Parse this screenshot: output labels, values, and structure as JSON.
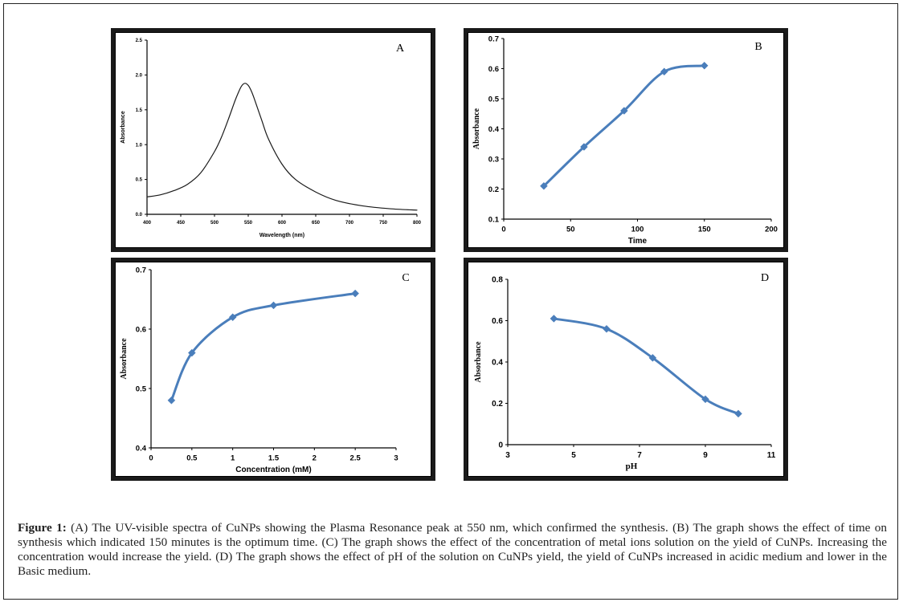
{
  "figure": {
    "caption_label": "Figure 1:",
    "caption_text": "(A) The UV-visible spectra of CuNPs showing the Plasma Resonance peak at 550 nm, which confirmed the synthesis. (B) The graph shows the effect of time on synthesis which indicated 150 minutes is the optimum time. (C) The graph shows the effect of the concentration of metal ions solution on the yield of CuNPs. Increasing the concentration would increase the yield. (D) The graph shows the effect of pH of the solution on CuNPs yield, the yield of CuNPs increased in acidic medium and lower in the Basic medium."
  },
  "colors": {
    "series": "#4a7ebb",
    "axis": "#000000",
    "curveA": "#1a1a1a"
  },
  "chart_data": [
    {
      "id": "A",
      "type": "line",
      "panel_label": "A",
      "title": "",
      "xlabel": "Wavelength (nm)",
      "ylabel": "Absorbance",
      "xlim": [
        400,
        800
      ],
      "ylim": [
        0,
        2.5
      ],
      "xticks": [
        400,
        450,
        500,
        550,
        600,
        650,
        700,
        750,
        800
      ],
      "yticks": [
        0.0,
        0.5,
        1.0,
        1.5,
        2.0,
        2.5
      ],
      "ytick_labels": [
        "0.0",
        "0.5",
        "1.0",
        "1.5",
        "2.0",
        "2.5"
      ],
      "x": [
        400,
        420,
        440,
        460,
        480,
        500,
        510,
        520,
        530,
        535,
        540,
        545,
        550,
        555,
        560,
        570,
        580,
        600,
        620,
        650,
        680,
        720,
        760,
        800
      ],
      "y": [
        0.25,
        0.28,
        0.34,
        0.43,
        0.6,
        0.9,
        1.1,
        1.35,
        1.62,
        1.74,
        1.84,
        1.88,
        1.85,
        1.76,
        1.63,
        1.35,
        1.08,
        0.72,
        0.5,
        0.32,
        0.2,
        0.12,
        0.08,
        0.06
      ]
    },
    {
      "id": "B",
      "type": "line",
      "panel_label": "B",
      "title": "",
      "xlabel": "Time",
      "ylabel": "Absorbance",
      "xlim": [
        0,
        200
      ],
      "ylim": [
        0.1,
        0.7
      ],
      "xticks": [
        0,
        50,
        100,
        150,
        200
      ],
      "yticks": [
        0.1,
        0.2,
        0.3,
        0.4,
        0.5,
        0.6,
        0.7
      ],
      "ytick_labels": [
        "0.1",
        "0.2",
        "0.3",
        "0.4",
        "0.5",
        "0.6",
        "0.7"
      ],
      "x": [
        30,
        60,
        90,
        120,
        150
      ],
      "y": [
        0.21,
        0.34,
        0.46,
        0.59,
        0.61
      ]
    },
    {
      "id": "C",
      "type": "line",
      "panel_label": "C",
      "title": "",
      "xlabel": "Concentration (mM)",
      "ylabel": "Absorbance",
      "xlim": [
        0,
        3
      ],
      "ylim": [
        0.4,
        0.7
      ],
      "xticks": [
        0,
        0.5,
        1,
        1.5,
        2,
        2.5,
        3
      ],
      "yticks": [
        0.4,
        0.5,
        0.6,
        0.7
      ],
      "ytick_labels": [
        "0.4",
        "0.5",
        "0.6",
        "0.7"
      ],
      "x": [
        0.25,
        0.5,
        1.0,
        1.5,
        2.5
      ],
      "y": [
        0.48,
        0.56,
        0.62,
        0.64,
        0.66
      ]
    },
    {
      "id": "D",
      "type": "line",
      "panel_label": "D",
      "title": "",
      "xlabel": "pH",
      "ylabel": "Absorbance",
      "xlim": [
        3,
        11
      ],
      "ylim": [
        0,
        0.8
      ],
      "xticks": [
        3,
        5,
        7,
        9,
        11
      ],
      "yticks": [
        0,
        0.2,
        0.4,
        0.6,
        0.8
      ],
      "ytick_labels": [
        "0",
        "0.2",
        "0.4",
        "0.6",
        "0.8"
      ],
      "x": [
        4.4,
        6.0,
        7.4,
        9.0,
        10.0
      ],
      "y": [
        0.61,
        0.56,
        0.42,
        0.22,
        0.15
      ]
    }
  ]
}
